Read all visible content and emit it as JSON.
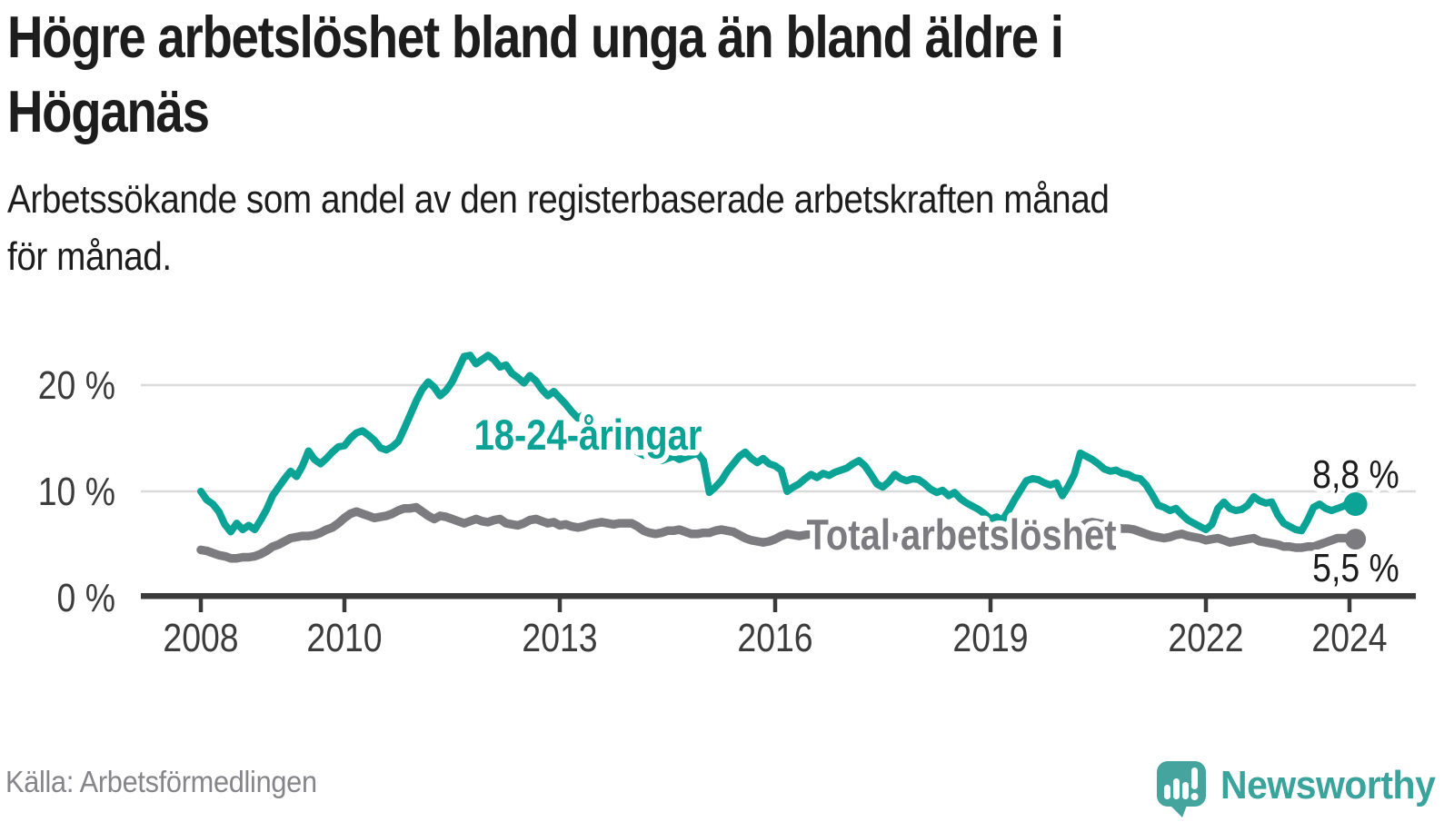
{
  "header": {
    "title_lines": [
      "Högre arbetslöshet bland unga än bland äldre i",
      "Höganäs"
    ],
    "subtitle_lines": [
      "Arbetssökande som andel av den registerbaserade arbetskraften månad",
      "för månad."
    ]
  },
  "footer": {
    "source": "Källa: Arbetsförmedlingen",
    "brand": "Newsworthy"
  },
  "colors": {
    "youth_line": "#0aa396",
    "total_line": "#7b7b80",
    "annotation_text": "#1d1d1d",
    "axis": "#3a3a3a",
    "gridline": "#dadada",
    "brand_teal": "#3aa39b",
    "logo_box": "#45a49e"
  },
  "chart_data": {
    "type": "line",
    "title": "Högre arbetslöshet bland unga än bland äldre i Höganäs",
    "subtitle": "Arbetssökande som andel av den registerbaserade arbetskraften månad för månad.",
    "unit": "%",
    "x_start_year": 2008,
    "x_step_months": 1,
    "x_end_label_values": {
      "youth": "8,8 %",
      "total": "5,5 %"
    },
    "ylim": [
      0,
      24
    ],
    "grid": true,
    "legend_position": "inline-labels",
    "y_ticks": [
      {
        "value": 0,
        "label": "0 %",
        "gridline": false
      },
      {
        "value": 10,
        "label": "10 %",
        "gridline": true
      },
      {
        "value": 20,
        "label": "20 %",
        "gridline": true
      }
    ],
    "x_ticks": [
      {
        "year": 2008,
        "label": "2008"
      },
      {
        "year": 2010,
        "label": "2010"
      },
      {
        "year": 2013,
        "label": "2013"
      },
      {
        "year": 2016,
        "label": "2016"
      },
      {
        "year": 2019,
        "label": "2019"
      },
      {
        "year": 2022,
        "label": "2022"
      },
      {
        "year": 2024,
        "label": "2024"
      }
    ],
    "series": [
      {
        "name": "18-24-åringar",
        "color": "#0aa396",
        "end_value": 8.8,
        "end_label": "8,8 %",
        "values": [
          10.0,
          9.2,
          8.8,
          8.1,
          6.9,
          6.2,
          7.0,
          6.4,
          6.8,
          6.4,
          7.3,
          8.3,
          9.6,
          10.4,
          11.2,
          11.9,
          11.4,
          12.4,
          13.8,
          13.0,
          12.6,
          13.1,
          13.7,
          14.2,
          14.3,
          15.0,
          15.5,
          15.7,
          15.3,
          14.8,
          14.1,
          13.9,
          14.2,
          14.7,
          15.9,
          17.2,
          18.5,
          19.6,
          20.3,
          19.8,
          19.0,
          19.5,
          20.3,
          21.5,
          22.7,
          22.8,
          22.0,
          22.4,
          22.8,
          22.4,
          21.7,
          21.9,
          21.1,
          20.7,
          20.2,
          20.9,
          20.4,
          19.6,
          19.0,
          19.4,
          18.8,
          18.2,
          17.5,
          16.9,
          17.2,
          16.4,
          15.8,
          16.1,
          15.3,
          14.8,
          14.3,
          14.6,
          14.1,
          13.7,
          13.4,
          13.6,
          13.1,
          12.9,
          13.1,
          13.3,
          13.0,
          13.2,
          13.4,
          13.6,
          12.9,
          9.9,
          10.4,
          11.0,
          11.9,
          12.6,
          13.3,
          13.7,
          13.1,
          12.7,
          13.1,
          12.6,
          12.4,
          12.0,
          10.0,
          10.4,
          10.7,
          11.2,
          11.6,
          11.3,
          11.7,
          11.5,
          11.8,
          12.0,
          12.2,
          12.6,
          12.9,
          12.4,
          11.6,
          10.7,
          10.4,
          10.9,
          11.6,
          11.2,
          11.0,
          11.2,
          11.1,
          10.7,
          10.2,
          9.9,
          10.1,
          9.6,
          9.9,
          9.3,
          8.9,
          8.6,
          8.3,
          7.9,
          7.4,
          7.6,
          7.3,
          8.2,
          9.2,
          10.1,
          11.0,
          11.2,
          11.1,
          10.8,
          10.6,
          10.8,
          9.6,
          10.5,
          11.6,
          13.6,
          13.3,
          13.0,
          12.6,
          12.1,
          11.9,
          12.0,
          11.7,
          11.6,
          11.3,
          11.2,
          10.6,
          9.7,
          8.7,
          8.5,
          8.2,
          8.4,
          7.8,
          7.3,
          7.0,
          6.7,
          6.4,
          6.9,
          8.4,
          9.0,
          8.4,
          8.2,
          8.3,
          8.7,
          9.5,
          9.1,
          8.9,
          9.0,
          7.8,
          7.0,
          6.7,
          6.4,
          6.3,
          7.3,
          8.5,
          8.8,
          8.4,
          8.2,
          8.4,
          8.6,
          9.0,
          8.8
        ]
      },
      {
        "name": "Total arbetslöshet",
        "color": "#7b7b80",
        "end_value": 5.5,
        "end_label": "5,5 %",
        "values": [
          4.5,
          4.4,
          4.2,
          4.0,
          3.9,
          3.7,
          3.7,
          3.8,
          3.8,
          3.9,
          4.1,
          4.4,
          4.8,
          5.0,
          5.3,
          5.6,
          5.7,
          5.8,
          5.8,
          5.9,
          6.1,
          6.4,
          6.6,
          7.0,
          7.5,
          7.9,
          8.1,
          7.9,
          7.7,
          7.5,
          7.6,
          7.7,
          7.9,
          8.2,
          8.4,
          8.4,
          8.5,
          8.1,
          7.7,
          7.4,
          7.7,
          7.6,
          7.4,
          7.2,
          7.0,
          7.2,
          7.4,
          7.2,
          7.1,
          7.3,
          7.4,
          7.0,
          6.9,
          6.8,
          7.0,
          7.3,
          7.4,
          7.2,
          7.0,
          7.1,
          6.8,
          6.9,
          6.7,
          6.6,
          6.7,
          6.9,
          7.0,
          7.1,
          7.0,
          6.9,
          7.0,
          7.0,
          7.0,
          6.7,
          6.3,
          6.1,
          6.0,
          6.1,
          6.3,
          6.3,
          6.4,
          6.2,
          6.0,
          6.0,
          6.1,
          6.1,
          6.3,
          6.4,
          6.3,
          6.2,
          5.9,
          5.6,
          5.4,
          5.3,
          5.2,
          5.3,
          5.5,
          5.8,
          6.0,
          5.9,
          5.8,
          5.9,
          6.0,
          5.9,
          6.0,
          6.1,
          6.0,
          6.0,
          6.1,
          6.0,
          5.9,
          5.8,
          5.9,
          5.8,
          5.9,
          5.8,
          5.7,
          5.6,
          5.6,
          5.5,
          5.5,
          5.4,
          5.4,
          5.3,
          5.2,
          5.2,
          5.3,
          5.2,
          5.1,
          5.0,
          5.0,
          5.1,
          5.2,
          5.1,
          5.1,
          5.0,
          5.1,
          5.2,
          5.3,
          5.2,
          5.2,
          5.1,
          5.2,
          5.3,
          5.5,
          5.6,
          6.0,
          6.6,
          7.0,
          7.1,
          7.0,
          6.9,
          6.8,
          6.6,
          6.5,
          6.5,
          6.4,
          6.2,
          6.0,
          5.8,
          5.7,
          5.6,
          5.7,
          5.9,
          6.0,
          5.8,
          5.7,
          5.6,
          5.4,
          5.5,
          5.6,
          5.4,
          5.2,
          5.3,
          5.4,
          5.5,
          5.6,
          5.3,
          5.2,
          5.1,
          5.0,
          4.8,
          4.8,
          4.7,
          4.7,
          4.8,
          4.8,
          5.0,
          5.2,
          5.4,
          5.6,
          5.6,
          5.6,
          5.5
        ]
      }
    ]
  }
}
